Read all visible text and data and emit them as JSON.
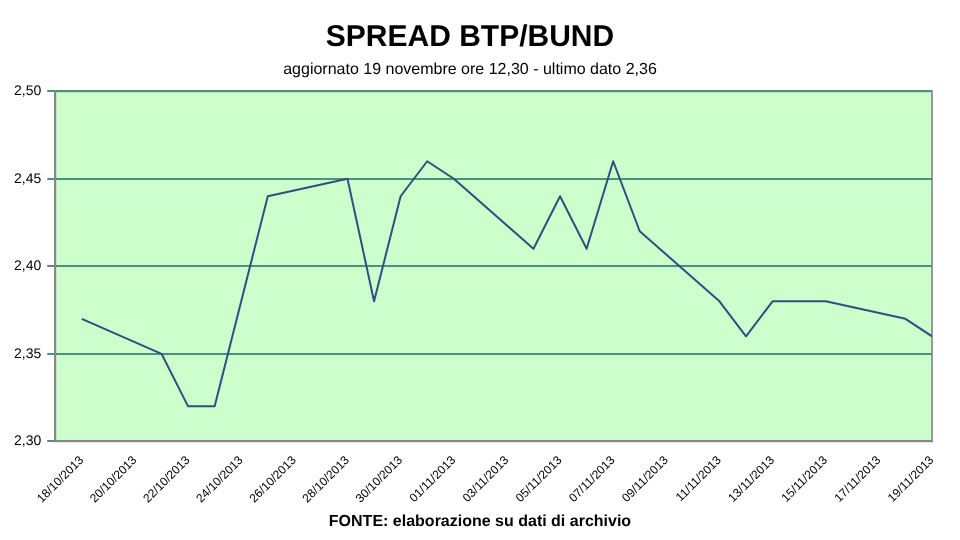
{
  "chart_data": {
    "type": "line",
    "title": "SPREAD BTP/BUND",
    "subtitle": "aggiornato 19 novembre ore 12,30 - ultimo dato 2,36",
    "x": [
      "2013-10-18",
      "2013-10-21",
      "2013-10-22",
      "2013-10-23",
      "2013-10-24",
      "2013-10-25",
      "2013-10-28",
      "2013-10-29",
      "2013-10-30",
      "2013-10-31",
      "2013-11-01",
      "2013-11-04",
      "2013-11-05",
      "2013-11-06",
      "2013-11-07",
      "2013-11-08",
      "2013-11-11",
      "2013-11-12",
      "2013-11-13",
      "2013-11-14",
      "2013-11-15",
      "2013-11-18",
      "2013-11-19"
    ],
    "series": [
      {
        "color": "#2f4f7f",
        "values": [
          2.37,
          2.35,
          2.32,
          2.32,
          2.38,
          2.44,
          2.45,
          2.38,
          2.44,
          2.46,
          2.45,
          2.41,
          2.44,
          2.41,
          2.46,
          2.42,
          2.38,
          2.36,
          2.38,
          2.38,
          2.38,
          2.37,
          2.36
        ]
      }
    ],
    "xlim": [
      "2013-10-17",
      "2013-11-19"
    ],
    "xticks": [
      {
        "value": "2013-10-18",
        "label": "18/10/2013"
      },
      {
        "value": "2013-10-20",
        "label": "20/10/2013"
      },
      {
        "value": "2013-10-22",
        "label": "22/10/2013"
      },
      {
        "value": "2013-10-24",
        "label": "24/10/2013"
      },
      {
        "value": "2013-10-26",
        "label": "26/10/2013"
      },
      {
        "value": "2013-10-28",
        "label": "28/10/2013"
      },
      {
        "value": "2013-10-30",
        "label": "30/10/2013"
      },
      {
        "value": "2013-11-01",
        "label": "01/11/2013"
      },
      {
        "value": "2013-11-03",
        "label": "03/11/2013"
      },
      {
        "value": "2013-11-05",
        "label": "05/11/2013"
      },
      {
        "value": "2013-11-07",
        "label": "07/11/2013"
      },
      {
        "value": "2013-11-09",
        "label": "09/11/2013"
      },
      {
        "value": "2013-11-11",
        "label": "11/11/2013"
      },
      {
        "value": "2013-11-13",
        "label": "13/11/2013"
      },
      {
        "value": "2013-11-15",
        "label": "15/11/2013"
      },
      {
        "value": "2013-11-17",
        "label": "17/11/2013"
      },
      {
        "value": "2013-11-19",
        "label": "19/11/2013"
      }
    ],
    "ylim": [
      2.3,
      2.5
    ],
    "yticks": [
      {
        "value": 2.3,
        "label": "2,30"
      },
      {
        "value": 2.35,
        "label": "2,35"
      },
      {
        "value": 2.4,
        "label": "2,40"
      },
      {
        "value": 2.45,
        "label": "2,45"
      },
      {
        "value": 2.5,
        "label": "2,50"
      }
    ],
    "grid": "y",
    "marker": "none",
    "line_style": "solid",
    "legend": false,
    "annotations": [
      "FONTE: elaborazione su dati di archivio"
    ]
  }
}
